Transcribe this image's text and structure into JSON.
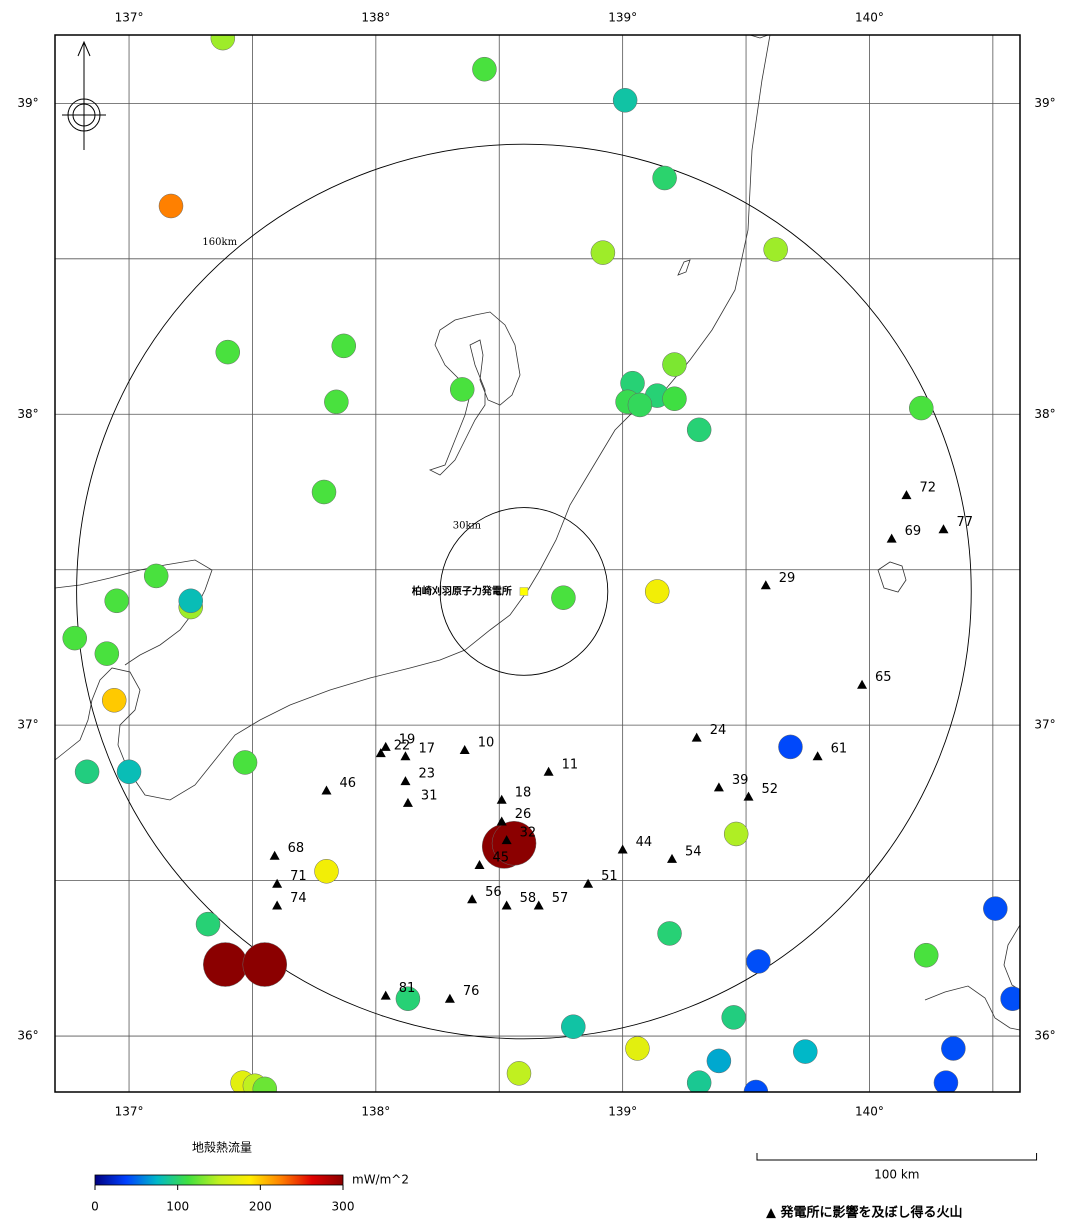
{
  "map": {
    "lonlim": [
      136.7,
      140.61
    ],
    "latlim": [
      35.82,
      39.22
    ],
    "lon_grid": [
      137,
      137.5,
      138,
      138.5,
      139,
      139.5,
      140,
      140.5
    ],
    "lat_grid": [
      36,
      36.5,
      37,
      37.5,
      38,
      38.5,
      39
    ],
    "lon_ticks": [
      {
        "value": 137,
        "label": "137°"
      },
      {
        "value": 138,
        "label": "138°"
      },
      {
        "value": 139,
        "label": "139°"
      },
      {
        "value": 140,
        "label": "140°"
      }
    ],
    "lat_ticks": [
      {
        "value": 36,
        "label": "36°"
      },
      {
        "value": 37,
        "label": "37°"
      },
      {
        "value": 38,
        "label": "38°"
      },
      {
        "value": 39,
        "label": "39°"
      }
    ]
  },
  "plant": {
    "label": "柏崎刈羽原子力発電所",
    "lon": 138.6,
    "lat": 37.43,
    "color": "#ffff00"
  },
  "distance_circles": [
    {
      "label": "160km",
      "radius_km": 160
    },
    {
      "label": "30km",
      "radius_km": 30
    }
  ],
  "heat_flow": {
    "title": "地殻熱流量",
    "unit": "mW/m^2",
    "lim": [
      0,
      300
    ],
    "ticks": [
      0,
      100,
      200,
      300
    ],
    "colormap": [
      "#000080",
      "#0040ff",
      "#00b8c8",
      "#40e040",
      "#c0f020",
      "#ffee00",
      "#ff8000",
      "#e00000",
      "#8b0000"
    ],
    "points": [
      {
        "lon": 137.38,
        "lat": 39.21,
        "value": 140
      },
      {
        "lon": 138.44,
        "lat": 39.11,
        "value": 115
      },
      {
        "lon": 139.01,
        "lat": 39.01,
        "value": 85
      },
      {
        "lon": 137.17,
        "lat": 38.67,
        "value": 225
      },
      {
        "lon": 139.17,
        "lat": 38.76,
        "value": 100
      },
      {
        "lon": 138.92,
        "lat": 38.52,
        "value": 140
      },
      {
        "lon": 139.62,
        "lat": 38.53,
        "value": 140
      },
      {
        "lon": 137.4,
        "lat": 38.2,
        "value": 115
      },
      {
        "lon": 137.87,
        "lat": 38.22,
        "value": 115
      },
      {
        "lon": 137.84,
        "lat": 38.04,
        "value": 115
      },
      {
        "lon": 138.35,
        "lat": 38.08,
        "value": 115
      },
      {
        "lon": 139.21,
        "lat": 38.16,
        "value": 130
      },
      {
        "lon": 139.04,
        "lat": 38.1,
        "value": 98
      },
      {
        "lon": 139.02,
        "lat": 38.04,
        "value": 108
      },
      {
        "lon": 139.14,
        "lat": 38.06,
        "value": 98
      },
      {
        "lon": 139.21,
        "lat": 38.05,
        "value": 112
      },
      {
        "lon": 139.07,
        "lat": 38.03,
        "value": 105
      },
      {
        "lon": 139.31,
        "lat": 37.95,
        "value": 98
      },
      {
        "lon": 140.21,
        "lat": 38.02,
        "value": 115
      },
      {
        "lon": 137.79,
        "lat": 37.75,
        "value": 115
      },
      {
        "lon": 137.11,
        "lat": 37.48,
        "value": 115
      },
      {
        "lon": 136.95,
        "lat": 37.4,
        "value": 115
      },
      {
        "lon": 137.25,
        "lat": 37.38,
        "value": 140
      },
      {
        "lon": 137.25,
        "lat": 37.4,
        "value": 80
      },
      {
        "lon": 136.78,
        "lat": 37.28,
        "value": 115
      },
      {
        "lon": 136.91,
        "lat": 37.23,
        "value": 115
      },
      {
        "lon": 136.94,
        "lat": 37.08,
        "value": 200
      },
      {
        "lon": 138.76,
        "lat": 37.41,
        "value": 115
      },
      {
        "lon": 139.14,
        "lat": 37.43,
        "value": 180
      },
      {
        "lon": 137.47,
        "lat": 36.88,
        "value": 115
      },
      {
        "lon": 136.83,
        "lat": 36.85,
        "value": 95
      },
      {
        "lon": 137.0,
        "lat": 36.85,
        "value": 80
      },
      {
        "lon": 139.68,
        "lat": 36.93,
        "value": 40
      },
      {
        "lon": 139.46,
        "lat": 36.65,
        "value": 145
      },
      {
        "lon": 137.8,
        "lat": 36.53,
        "value": 180
      },
      {
        "lon": 138.52,
        "lat": 36.61,
        "value": 300
      },
      {
        "lon": 138.56,
        "lat": 36.62,
        "value": 300
      },
      {
        "lon": 137.32,
        "lat": 36.36,
        "value": 98
      },
      {
        "lon": 137.39,
        "lat": 36.23,
        "value": 300
      },
      {
        "lon": 137.55,
        "lat": 36.23,
        "value": 300
      },
      {
        "lon": 139.19,
        "lat": 36.33,
        "value": 98
      },
      {
        "lon": 139.55,
        "lat": 36.24,
        "value": 42
      },
      {
        "lon": 140.23,
        "lat": 36.26,
        "value": 115
      },
      {
        "lon": 140.51,
        "lat": 36.41,
        "value": 42
      },
      {
        "lon": 140.58,
        "lat": 36.12,
        "value": 42
      },
      {
        "lon": 138.13,
        "lat": 36.12,
        "value": 98
      },
      {
        "lon": 138.8,
        "lat": 36.03,
        "value": 85
      },
      {
        "lon": 139.45,
        "lat": 36.06,
        "value": 95
      },
      {
        "lon": 139.06,
        "lat": 35.96,
        "value": 170
      },
      {
        "lon": 138.58,
        "lat": 35.88,
        "value": 150
      },
      {
        "lon": 139.39,
        "lat": 35.92,
        "value": 70
      },
      {
        "lon": 139.74,
        "lat": 35.95,
        "value": 75
      },
      {
        "lon": 140.34,
        "lat": 35.96,
        "value": 42
      },
      {
        "lon": 140.31,
        "lat": 35.85,
        "value": 40
      },
      {
        "lon": 139.31,
        "lat": 35.85,
        "value": 90
      },
      {
        "lon": 139.54,
        "lat": 35.82,
        "value": 42
      },
      {
        "lon": 137.46,
        "lat": 35.85,
        "value": 170
      },
      {
        "lon": 137.51,
        "lat": 35.84,
        "value": 150
      },
      {
        "lon": 137.55,
        "lat": 35.83,
        "value": 125
      }
    ]
  },
  "volcanoes": {
    "legend": "▲ 発電所に影響を及ぼし得る火山",
    "color": "#000000",
    "items": [
      {
        "id": 72,
        "lon": 140.15,
        "lat": 37.74
      },
      {
        "id": 69,
        "lon": 140.09,
        "lat": 37.6
      },
      {
        "id": 77,
        "lon": 140.3,
        "lat": 37.63
      },
      {
        "id": 29,
        "lon": 139.58,
        "lat": 37.45
      },
      {
        "id": 65,
        "lon": 139.97,
        "lat": 37.13
      },
      {
        "id": 24,
        "lon": 139.3,
        "lat": 36.96
      },
      {
        "id": 61,
        "lon": 139.79,
        "lat": 36.9
      },
      {
        "id": 19,
        "lon": 138.04,
        "lat": 36.93
      },
      {
        "id": 22,
        "lon": 138.02,
        "lat": 36.91
      },
      {
        "id": 17,
        "lon": 138.12,
        "lat": 36.9
      },
      {
        "id": 10,
        "lon": 138.36,
        "lat": 36.92
      },
      {
        "id": 11,
        "lon": 138.7,
        "lat": 36.85
      },
      {
        "id": 46,
        "lon": 137.8,
        "lat": 36.79
      },
      {
        "id": 23,
        "lon": 138.12,
        "lat": 36.82
      },
      {
        "id": 31,
        "lon": 138.13,
        "lat": 36.75
      },
      {
        "id": 39,
        "lon": 139.39,
        "lat": 36.8
      },
      {
        "id": 52,
        "lon": 139.51,
        "lat": 36.77
      },
      {
        "id": 18,
        "lon": 138.51,
        "lat": 36.76
      },
      {
        "id": 26,
        "lon": 138.51,
        "lat": 36.69
      },
      {
        "id": 32,
        "lon": 138.53,
        "lat": 36.63
      },
      {
        "id": 44,
        "lon": 139.0,
        "lat": 36.6
      },
      {
        "id": 54,
        "lon": 139.2,
        "lat": 36.57
      },
      {
        "id": 45,
        "lon": 138.42,
        "lat": 36.55
      },
      {
        "id": 68,
        "lon": 137.59,
        "lat": 36.58
      },
      {
        "id": 51,
        "lon": 138.86,
        "lat": 36.49
      },
      {
        "id": 71,
        "lon": 137.6,
        "lat": 36.49
      },
      {
        "id": 74,
        "lon": 137.6,
        "lat": 36.42
      },
      {
        "id": 56,
        "lon": 138.39,
        "lat": 36.44
      },
      {
        "id": 58,
        "lon": 138.53,
        "lat": 36.42
      },
      {
        "id": 57,
        "lon": 138.66,
        "lat": 36.42
      },
      {
        "id": 81,
        "lon": 138.04,
        "lat": 36.13
      },
      {
        "id": 76,
        "lon": 138.3,
        "lat": 36.12
      }
    ]
  },
  "scale_bar": {
    "label": "100 km",
    "length_km": 100
  }
}
